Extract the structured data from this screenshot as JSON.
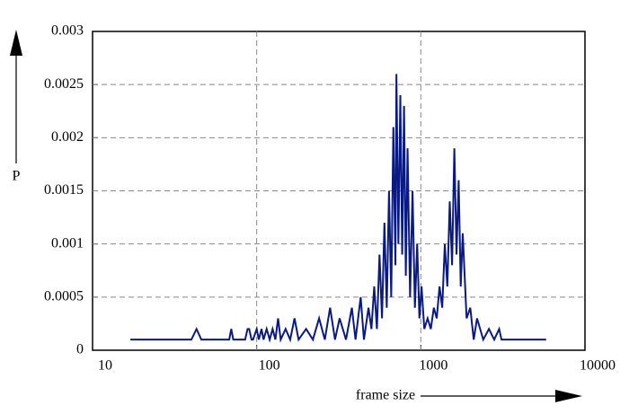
{
  "chart_data": {
    "type": "line",
    "x_label": "frame size",
    "y_label": "P",
    "x": [
      17,
      40,
      43,
      46,
      68,
      70,
      72,
      85,
      88,
      90,
      93,
      95,
      100,
      103,
      107,
      110,
      115,
      120,
      125,
      130,
      135,
      140,
      150,
      160,
      170,
      180,
      200,
      220,
      240,
      260,
      280,
      300,
      320,
      350,
      380,
      400,
      430,
      450,
      480,
      500,
      520,
      540,
      560,
      580,
      600,
      620,
      640,
      660,
      680,
      700,
      710,
      730,
      750,
      770,
      790,
      810,
      830,
      860,
      890,
      920,
      950,
      980,
      1010,
      1050,
      1100,
      1150,
      1200,
      1250,
      1300,
      1350,
      1400,
      1450,
      1500,
      1550,
      1600,
      1650,
      1700,
      1750,
      1800,
      1900,
      2000,
      2100,
      2200,
      2400,
      2600,
      2800,
      3000,
      3100,
      5800
    ],
    "values": [
      0.0001,
      0.0001,
      0.0002,
      0.0001,
      0.0001,
      0.0002,
      0.0001,
      0.0001,
      0.0002,
      0.0002,
      0.0001,
      0.0001,
      0.0002,
      0.0001,
      0.0002,
      0.0001,
      0.0002,
      0.0001,
      0.0002,
      0.0001,
      0.0003,
      0.0001,
      0.0002,
      0.0001,
      0.0003,
      0.0001,
      0.0002,
      0.0001,
      0.0003,
      0.0001,
      0.0004,
      0.0001,
      0.0003,
      0.0001,
      0.0004,
      0.0001,
      0.0005,
      0.0001,
      0.0004,
      0.0002,
      0.0006,
      0.0002,
      0.0009,
      0.0003,
      0.0012,
      0.0004,
      0.0015,
      0.0005,
      0.0021,
      0.0008,
      0.0026,
      0.001,
      0.0024,
      0.0009,
      0.0023,
      0.0007,
      0.0019,
      0.0005,
      0.0015,
      0.0004,
      0.001,
      0.0003,
      0.0006,
      0.0002,
      0.0003,
      0.0002,
      0.0004,
      0.0003,
      0.0006,
      0.0004,
      0.001,
      0.0006,
      0.0014,
      0.0008,
      0.0019,
      0.0009,
      0.0016,
      0.0006,
      0.0011,
      0.0003,
      0.0004,
      0.0001,
      0.0003,
      0.0001,
      0.0002,
      0.0001,
      0.0002,
      0.0001,
      0.0001
    ],
    "color": "#0a1a80",
    "xlog": true,
    "xlim": [
      10,
      10000
    ],
    "xticks": [
      10,
      100,
      1000,
      10000
    ],
    "ylim": [
      0,
      0.003
    ],
    "yticks": [
      0,
      0.0005,
      0.001,
      0.0015,
      0.002,
      0.0025,
      0.003
    ],
    "grid": true
  }
}
